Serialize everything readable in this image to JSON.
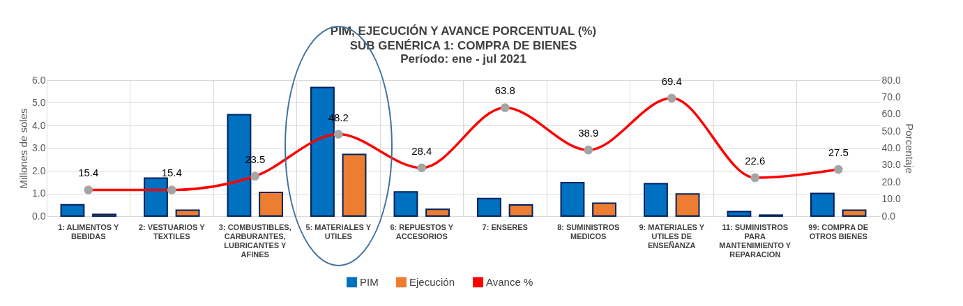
{
  "chart_data": {
    "type": "bar",
    "title": "PIM, EJECUCIÓN Y AVANCE PORCENTUAL (%)",
    "subtitle": "SUB GENÉRICA 1: COMPRA DE BIENES\nPeríodo: ene - jul 2021",
    "ylabel": "Millones de soles",
    "y2label": "Porcentaje",
    "categories": [
      "1: ALIMENTOS Y BEBIDAS",
      "2: VESTUARIOS Y TEXTILES",
      "3: COMBUSTIBLES, CARBURANTES, LUBRICANTES Y AFINES",
      "5: MATERIALES Y UTILES",
      "6: REPUESTOS Y ACCESORIOS",
      "7: ENSERES",
      "8: SUMINISTROS MEDICOS",
      "9: MATERIALES Y UTILES DE ENSEÑANZA",
      "11: SUMINISTROS PARA MANTENIMIENTO Y REPARACION",
      "99: COMPRA DE OTROS BIENES"
    ],
    "series": [
      {
        "name": "PIM",
        "color": "#0070c0",
        "values": [
          0.5,
          1.68,
          4.48,
          5.68,
          1.07,
          0.78,
          1.48,
          1.43,
          0.2,
          1.0
        ]
      },
      {
        "name": "Ejecución",
        "color": "#ed7d31",
        "values": [
          0.08,
          0.26,
          1.05,
          2.72,
          0.3,
          0.49,
          0.57,
          0.98,
          0.05,
          0.26
        ]
      },
      {
        "name": "Avance %",
        "type": "line",
        "axis": "y2",
        "color": "#ff0000",
        "marker": "circle",
        "data_labels": true,
        "values": [
          15.4,
          15.4,
          23.5,
          48.2,
          28.4,
          63.8,
          38.9,
          69.4,
          22.6,
          27.5
        ]
      }
    ],
    "ylim": [
      0,
      6
    ],
    "yticks": [
      {
        "value": 0,
        "label": "0.0"
      },
      {
        "value": 1,
        "label": "1.0"
      },
      {
        "value": 2,
        "label": "2.0"
      },
      {
        "value": 3,
        "label": "3.0"
      },
      {
        "value": 4,
        "label": "4.0"
      },
      {
        "value": 5,
        "label": "5.0"
      },
      {
        "value": 6,
        "label": "6.0"
      }
    ],
    "y2lim": [
      0,
      80
    ],
    "y2ticks": [
      {
        "value": 0,
        "label": "0.0"
      },
      {
        "value": 10,
        "label": "10.0"
      },
      {
        "value": 20,
        "label": "20.0"
      },
      {
        "value": 30,
        "label": "30.0"
      },
      {
        "value": 40,
        "label": "40.0"
      },
      {
        "value": 50,
        "label": "50.0"
      },
      {
        "value": 60,
        "label": "60.0"
      },
      {
        "value": 70,
        "label": "70.0"
      },
      {
        "value": 80,
        "label": "80.0"
      }
    ],
    "grid": true,
    "legend": "bottom"
  }
}
